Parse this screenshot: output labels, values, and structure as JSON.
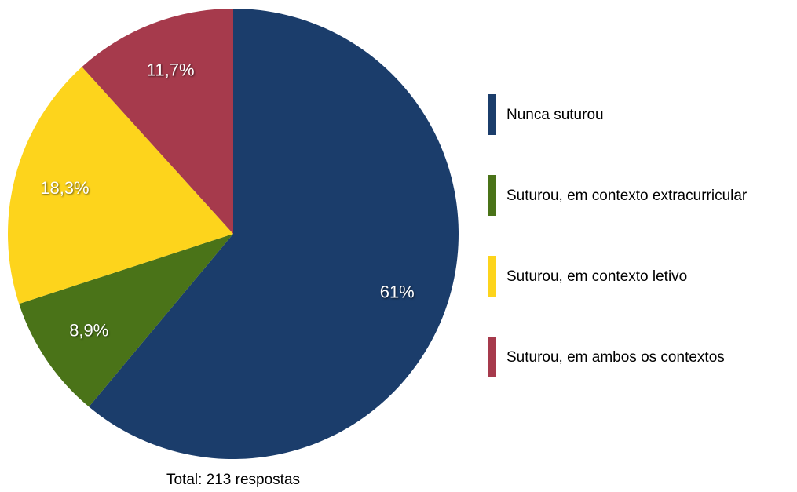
{
  "chart_data": {
    "type": "pie",
    "categories": [
      "Nunca suturou",
      "Suturou, em contexto extracurricular",
      "Suturou, em contexto letivo",
      "Suturou, em ambos os contextos"
    ],
    "values": [
      61,
      8.9,
      18.3,
      11.7
    ],
    "value_labels": [
      "61%",
      "8,9%",
      "18,3%",
      "11,7%"
    ],
    "colors": [
      "#1b3d6b",
      "#4a7318",
      "#fdd41c",
      "#a63a4c"
    ],
    "annotation": "Total: 213 respostas",
    "legend": "right"
  }
}
